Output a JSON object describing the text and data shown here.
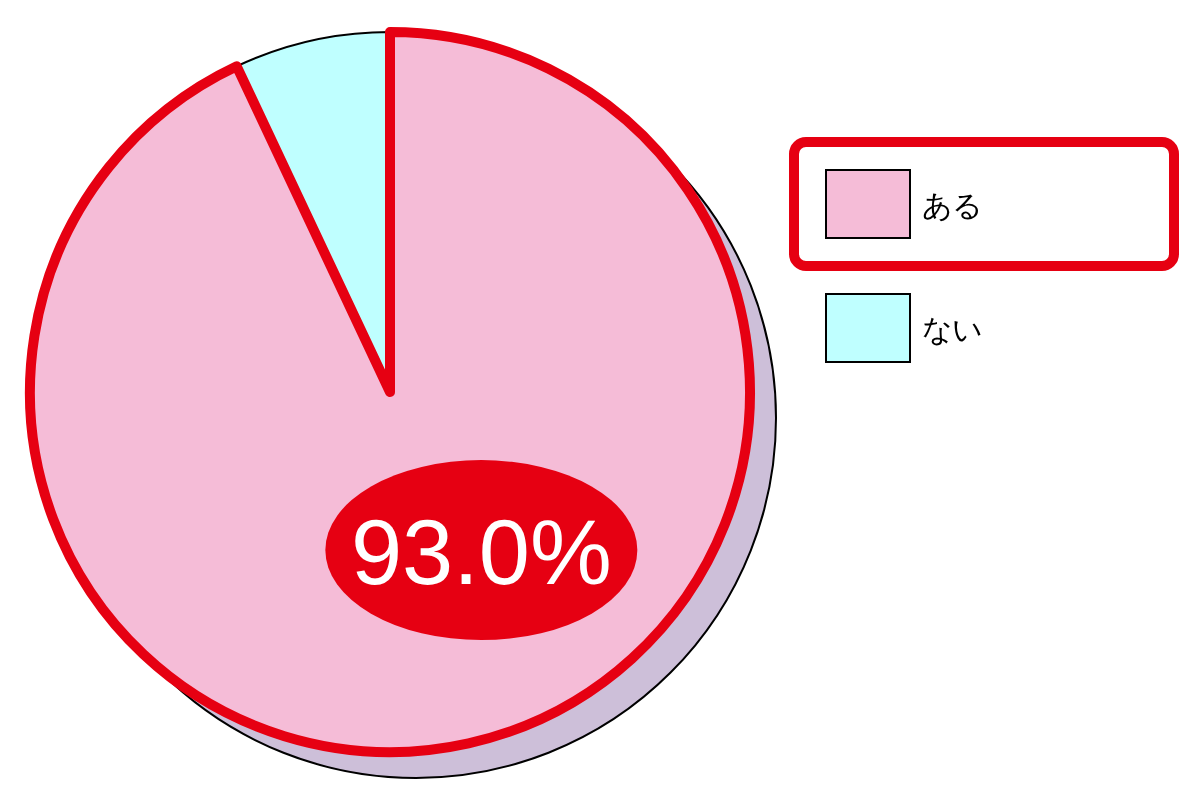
{
  "chart_data": {
    "type": "pie",
    "categories": [
      "ある",
      "ない"
    ],
    "values": [
      93.0,
      7.0
    ],
    "colors": [
      "#f5bcd7",
      "#bfffff"
    ],
    "value_labels": [
      "93.0%",
      null
    ],
    "legend": "right"
  }
}
